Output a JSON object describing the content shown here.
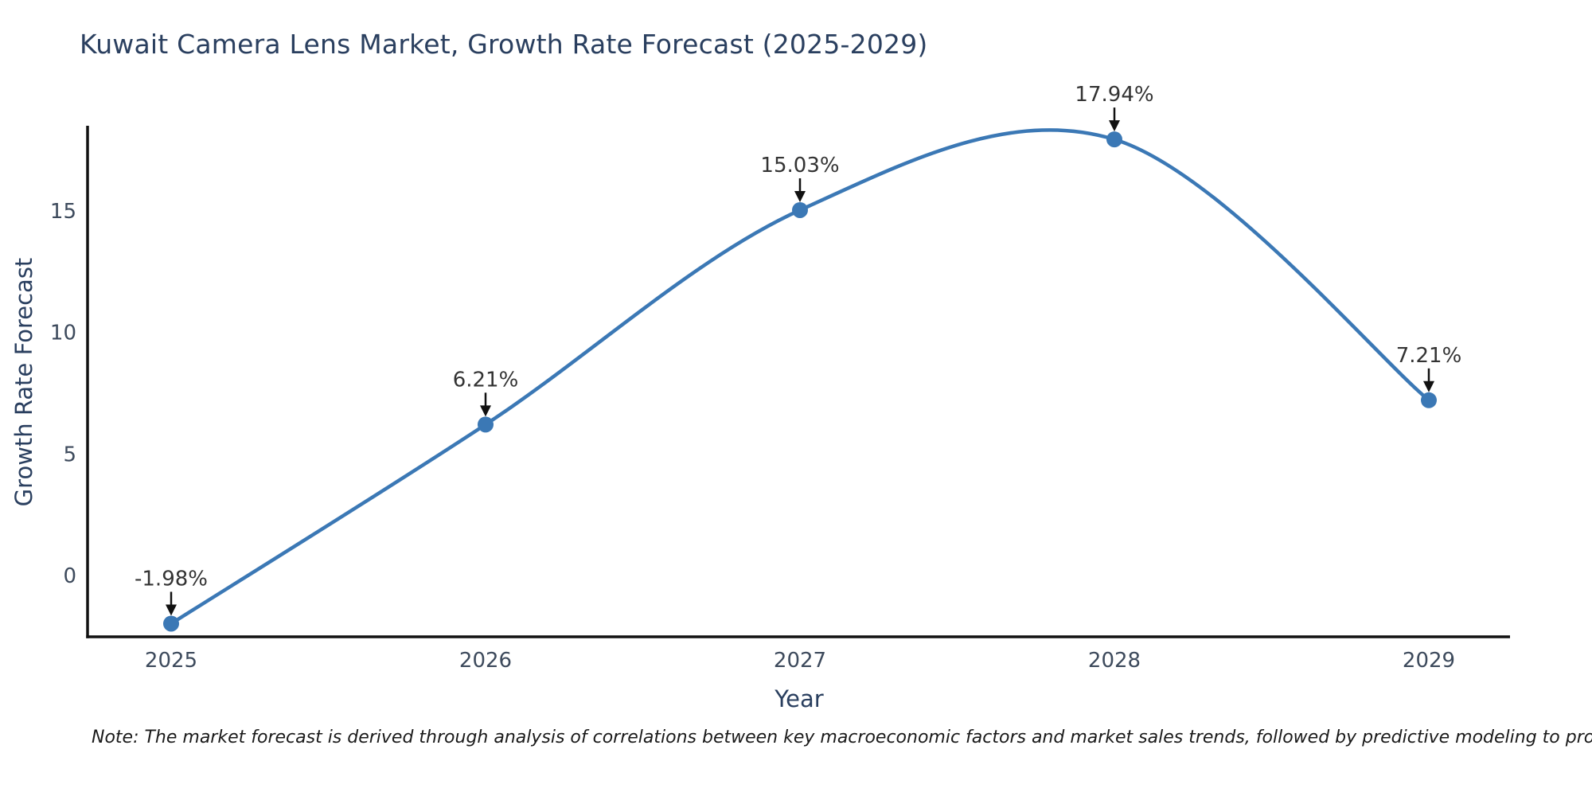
{
  "figure": {
    "title": "Kuwait Camera Lens Market, Growth Rate Forecast (2025-2029)",
    "note": "Note: The market forecast is derived through analysis of correlations between key macroeconomic factors and market sales trends, followed by predictive modeling to project future sales."
  },
  "chart_data": {
    "type": "line",
    "title": "Kuwait Camera Lens Market, Growth Rate Forecast (2025-2029)",
    "x": [
      2025,
      2026,
      2027,
      2028,
      2029
    ],
    "series": [
      {
        "name": "Growth Rate Forecast",
        "values": [
          -1.98,
          6.21,
          15.03,
          17.94,
          7.21
        ]
      }
    ],
    "point_labels": [
      "-1.98%",
      "6.21%",
      "15.03%",
      "17.94%",
      "7.21%"
    ],
    "xlabel": "Year",
    "ylabel": "Growth Rate Forecast",
    "yticks": [
      0,
      5,
      10,
      15
    ],
    "ylim": [
      -2.5,
      18.5
    ],
    "grid": false,
    "legend_position": "none",
    "line_shape": "spline",
    "annotation_arrows": true,
    "colors": {
      "line": "#3b78b5",
      "marker": "#3b78b5",
      "axis": "#111111",
      "tick_label": "#3d4a5c",
      "title": "#2a3f5f",
      "axis_title": "#2a3f5f",
      "annotation": "#333333",
      "arrow": "#111111",
      "note": "#1a1a1a",
      "background": "#ffffff"
    }
  }
}
